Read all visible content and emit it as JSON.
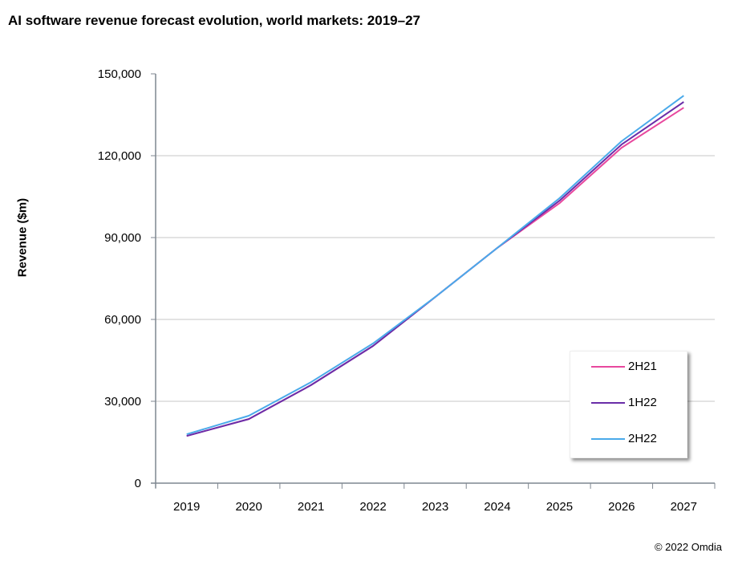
{
  "header": {
    "title": "AI software revenue forecast evolution, world markets: 2019–27"
  },
  "footer": {
    "credit": "© 2022 Omdia"
  },
  "chart_data": {
    "type": "line",
    "title": "AI software revenue forecast evolution, world markets: 2019–27",
    "xlabel": "",
    "ylabel": "Revenue ($m)",
    "categories": [
      "2019",
      "2020",
      "2021",
      "2022",
      "2023",
      "2024",
      "2025",
      "2026",
      "2027"
    ],
    "ylim": [
      0,
      150000
    ],
    "yticks": [
      0,
      30000,
      60000,
      90000,
      120000,
      150000
    ],
    "ytick_labels": [
      "0",
      "30,000",
      "60,000",
      "90,000",
      "120,000",
      "150,000"
    ],
    "grid": true,
    "legend_position": "bottom-right",
    "series": [
      {
        "name": "2H21",
        "color": "#e8489e",
        "values": [
          17300,
          23500,
          35900,
          50300,
          68200,
          86200,
          102600,
          122900,
          137600
        ]
      },
      {
        "name": "1H22",
        "color": "#6a2ea8",
        "values": [
          17300,
          23500,
          35900,
          50300,
          68200,
          86200,
          103500,
          124100,
          139700
        ]
      },
      {
        "name": "2H22",
        "color": "#4aaaea",
        "values": [
          17900,
          24700,
          37000,
          51200,
          68200,
          86200,
          104400,
          125300,
          142000
        ]
      }
    ]
  }
}
